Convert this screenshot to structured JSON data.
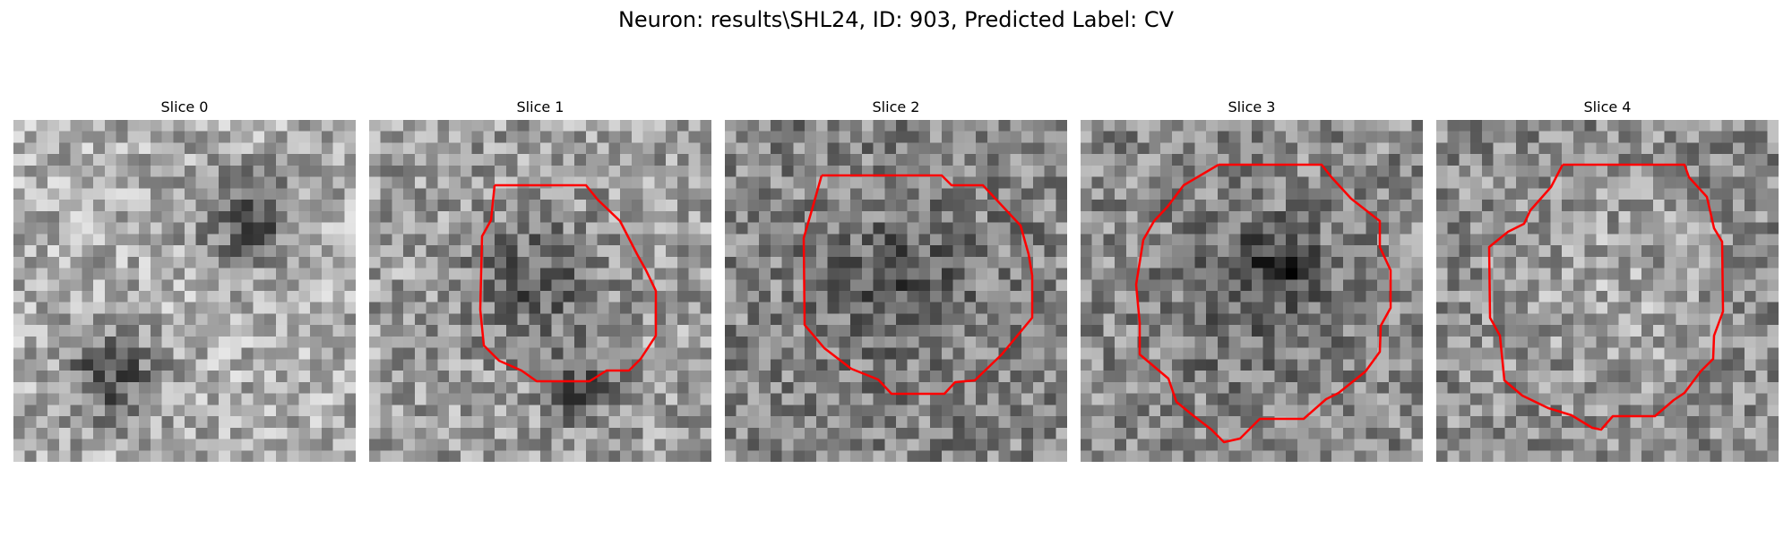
{
  "figure": {
    "title": "Neuron: results\\SHL24, ID: 903, Predicted Label: CV"
  },
  "slices": [
    {
      "label": "Slice 0",
      "has_contour": false
    },
    {
      "label": "Slice 1",
      "has_contour": true
    },
    {
      "label": "Slice 2",
      "has_contour": true
    },
    {
      "label": "Slice 3",
      "has_contour": true
    },
    {
      "label": "Slice 4",
      "has_contour": true
    }
  ],
  "colors": {
    "contour": "#ff0000",
    "background": "#ffffff"
  }
}
